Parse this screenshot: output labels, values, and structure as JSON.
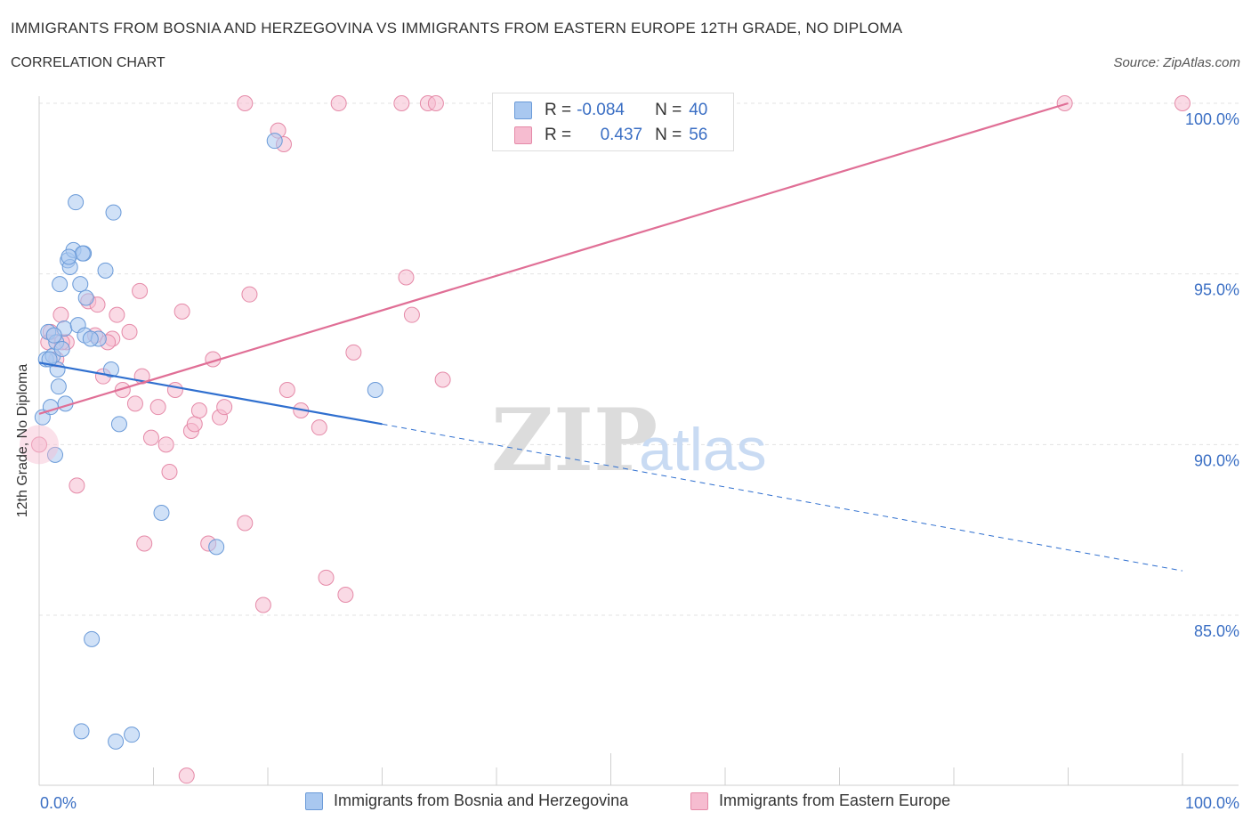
{
  "header": {
    "title": "IMMIGRANTS FROM BOSNIA AND HERZEGOVINA VS IMMIGRANTS FROM EASTERN EUROPE 12TH GRADE, NO DIPLOMA",
    "subtitle": "CORRELATION CHART",
    "source": "Source: ZipAtlas.com"
  },
  "legend": {
    "rows": [
      {
        "r_label": "R =",
        "r_value": "-0.084",
        "n_label": "N =",
        "n_value": "40",
        "color": "#a9c8f0",
        "border": "#6a9ad8"
      },
      {
        "r_label": "R =",
        "r_value": "0.437",
        "n_label": "N =",
        "n_value": "56",
        "color": "#f6bcd0",
        "border": "#e58aa8"
      }
    ]
  },
  "watermark": {
    "zip": "ZIP",
    "atlas": "atlas"
  },
  "chart_data": {
    "type": "scatter",
    "ylabel": "12th Grade, No Diploma",
    "x_tick_labels": [
      "0.0%",
      "100.0%"
    ],
    "y_tick_labels": [
      "100.0%",
      "95.0%",
      "90.0%",
      "85.0%"
    ],
    "y_ticks": [
      100,
      95,
      90,
      85
    ],
    "xlim": [
      0,
      100
    ],
    "ylim": [
      80.2,
      100.3
    ],
    "grid": true,
    "series": [
      {
        "name": "Immigrants from Bosnia and Herzegovina",
        "color": "#a9c8f0",
        "stroke": "#6a9ad8",
        "line_color": "#2f6fcf",
        "trend": {
          "x0": 0,
          "y0": 92.4,
          "x1": 30,
          "y1": 90.6,
          "x_end": 100,
          "y_end": 86.3
        },
        "points": [
          [
            0.3,
            90.8
          ],
          [
            0.6,
            92.5
          ],
          [
            0.8,
            93.3
          ],
          [
            1.0,
            91.1
          ],
          [
            1.2,
            92.6
          ],
          [
            1.4,
            89.7
          ],
          [
            1.5,
            93.0
          ],
          [
            1.6,
            92.2
          ],
          [
            1.8,
            94.7
          ],
          [
            1.7,
            91.7
          ],
          [
            2.0,
            92.8
          ],
          [
            2.2,
            93.4
          ],
          [
            2.3,
            91.2
          ],
          [
            2.5,
            95.4
          ],
          [
            2.7,
            95.2
          ],
          [
            3.0,
            95.7
          ],
          [
            3.2,
            97.1
          ],
          [
            3.4,
            93.5
          ],
          [
            3.6,
            94.7
          ],
          [
            3.9,
            95.6
          ],
          [
            4.0,
            93.2
          ],
          [
            3.8,
            95.6
          ],
          [
            4.1,
            94.3
          ],
          [
            5.2,
            93.1
          ],
          [
            5.8,
            95.1
          ],
          [
            6.3,
            92.2
          ],
          [
            6.5,
            96.8
          ],
          [
            7.0,
            90.6
          ],
          [
            10.7,
            88.0
          ],
          [
            15.5,
            87.0
          ],
          [
            20.6,
            98.9
          ],
          [
            29.4,
            91.6
          ],
          [
            4.6,
            84.3
          ],
          [
            3.7,
            81.6
          ],
          [
            6.7,
            81.3
          ],
          [
            8.1,
            81.5
          ],
          [
            0.9,
            92.5
          ],
          [
            2.6,
            95.5
          ],
          [
            1.3,
            93.2
          ],
          [
            4.5,
            93.1
          ]
        ]
      },
      {
        "name": "Immigrants from Eastern Europe",
        "color": "#f6bcd0",
        "stroke": "#e58aa8",
        "line_color": "#e06f96",
        "trend": {
          "x0": 0,
          "y0": 90.9,
          "x1": 90,
          "y1": 100.0
        },
        "points": [
          [
            0.0,
            90.0
          ],
          [
            0.8,
            93.0
          ],
          [
            1.5,
            92.5
          ],
          [
            1.9,
            93.8
          ],
          [
            2.4,
            93.0
          ],
          [
            3.3,
            88.8
          ],
          [
            4.3,
            94.2
          ],
          [
            4.9,
            93.2
          ],
          [
            5.1,
            94.1
          ],
          [
            5.6,
            92.0
          ],
          [
            6.4,
            93.1
          ],
          [
            6.8,
            93.8
          ],
          [
            7.3,
            91.6
          ],
          [
            7.9,
            93.3
          ],
          [
            8.4,
            91.2
          ],
          [
            8.8,
            94.5
          ],
          [
            9.2,
            87.1
          ],
          [
            9.8,
            90.2
          ],
          [
            10.4,
            91.1
          ],
          [
            11.1,
            90.0
          ],
          [
            11.4,
            89.2
          ],
          [
            11.9,
            91.6
          ],
          [
            12.5,
            93.9
          ],
          [
            13.3,
            90.4
          ],
          [
            13.6,
            90.6
          ],
          [
            14.0,
            91.0
          ],
          [
            14.8,
            87.1
          ],
          [
            15.2,
            92.5
          ],
          [
            15.8,
            90.8
          ],
          [
            16.2,
            91.1
          ],
          [
            18.0,
            87.7
          ],
          [
            18.4,
            94.4
          ],
          [
            19.6,
            85.3
          ],
          [
            20.9,
            99.2
          ],
          [
            21.4,
            98.8
          ],
          [
            21.7,
            91.6
          ],
          [
            22.9,
            91.0
          ],
          [
            24.5,
            90.5
          ],
          [
            25.1,
            86.1
          ],
          [
            26.2,
            100.0
          ],
          [
            26.8,
            85.6
          ],
          [
            27.5,
            92.7
          ],
          [
            31.7,
            100.0
          ],
          [
            32.1,
            94.9
          ],
          [
            32.6,
            93.8
          ],
          [
            34.0,
            100.0
          ],
          [
            34.7,
            100.0
          ],
          [
            35.3,
            91.9
          ],
          [
            18.0,
            100.0
          ],
          [
            89.7,
            100.0
          ],
          [
            100.0,
            100.0
          ],
          [
            12.9,
            80.3
          ],
          [
            1.0,
            93.3
          ],
          [
            2.0,
            93.0
          ],
          [
            9.0,
            92.0
          ],
          [
            6.0,
            93.0
          ]
        ]
      }
    ]
  }
}
